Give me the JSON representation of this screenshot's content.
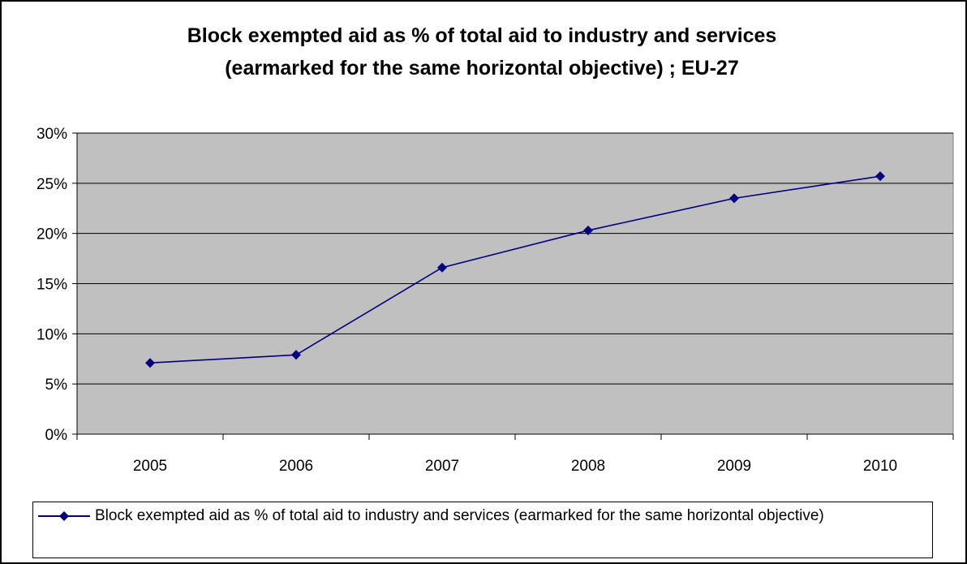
{
  "chart_data": {
    "type": "line",
    "title_line1": "Block exempted aid as % of total aid to industry and services",
    "title_line2": "(earmarked for the same horizontal objective) ; EU-27",
    "categories": [
      "2005",
      "2006",
      "2007",
      "2008",
      "2009",
      "2010"
    ],
    "series": [
      {
        "name": "Block exempted aid as % of total aid to industry and services (earmarked for the same horizontal objective)",
        "values": [
          0.071,
          0.079,
          0.166,
          0.203,
          0.235,
          0.257
        ],
        "color": "#000080"
      }
    ],
    "y_ticks": [
      "0%",
      "5%",
      "10%",
      "15%",
      "20%",
      "25%",
      "30%"
    ],
    "ylim": [
      0,
      0.3
    ],
    "grid": true,
    "plot_background": "#c0c0c0",
    "legend_position": "bottom"
  }
}
